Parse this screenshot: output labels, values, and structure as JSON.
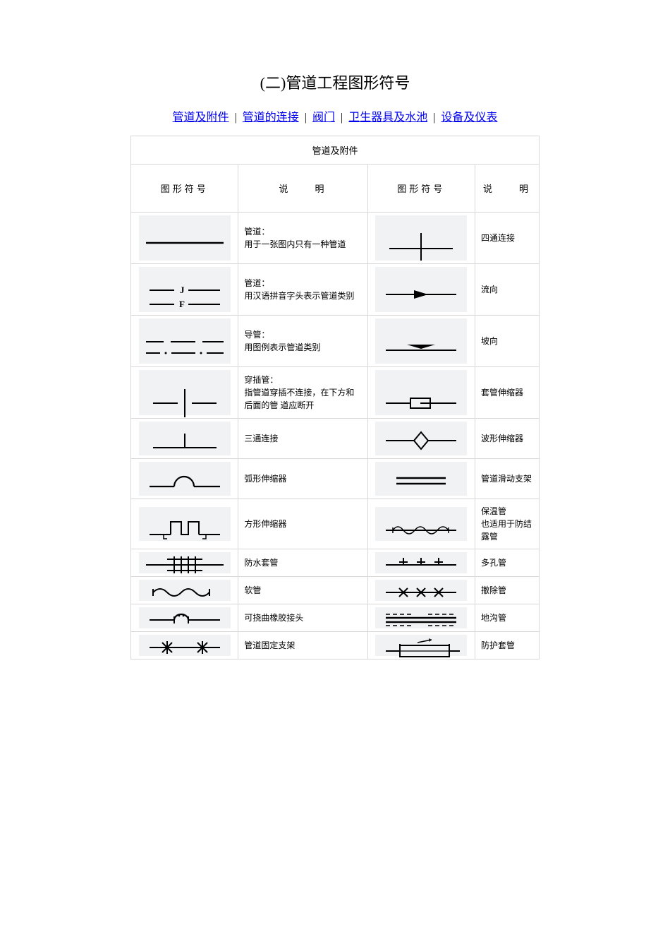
{
  "title": "(二)管道工程图形符号",
  "nav": {
    "items": [
      "管道及附件",
      "管道的连接",
      "阀门",
      "卫生器具及水池",
      "设备及仪表"
    ],
    "sep": " | "
  },
  "table": {
    "caption": "管道及附件",
    "headers": {
      "sym1": "图形符号",
      "desc1": "说　　明",
      "sym2": "图形符号",
      "desc2": "说　　明"
    },
    "rows": [
      {
        "svg1": "line",
        "desc1": "管道：\n用于一张图内只有一种管道",
        "svg2": "cross",
        "desc2": "四通连接"
      },
      {
        "svg1": "jf",
        "desc1": "管道：\n用汉语拼音字头表示管道类别",
        "svg2": "arrow",
        "desc2": "流向"
      },
      {
        "svg1": "dashdot",
        "desc1": "导管：\n用图例表示管道类别",
        "svg2": "slope",
        "desc2": "坡向"
      },
      {
        "svg1": "gap",
        "desc1": "穿插管：\n指管道穿插不连接，在下方和后面的管 道应断开",
        "svg2": "sleeve-exp",
        "desc2": "套管伸缩器"
      },
      {
        "svg1": "tee",
        "desc1": "三通连接",
        "svg2": "diamond",
        "desc2": "波形伸缩器"
      },
      {
        "svg1": "omega",
        "desc1": "弧形伸缩器",
        "svg2": "doubleline",
        "desc2": "管道滑动支架"
      },
      {
        "svg1": "square-exp",
        "desc1": "方形伸缩器",
        "svg2": "insulated",
        "desc2": "保温管\n也适用于防结露管"
      },
      {
        "svg1": "waterproof",
        "desc1": "防水套管",
        "svg2": "multi",
        "desc2": "多孔管"
      },
      {
        "svg1": "hose",
        "desc1": "软管",
        "svg2": "remove",
        "desc2": "撤除管"
      },
      {
        "svg1": "rubber",
        "desc1": "可挠曲橡胶接头",
        "svg2": "trench",
        "desc2": "地沟管"
      },
      {
        "svg1": "anchor",
        "desc1": "管道固定支架",
        "svg2": "protect",
        "desc2": "防护套管"
      }
    ]
  },
  "style": {
    "stroke": "#000000",
    "bg": "#f1f2f4",
    "link": "#0000ee"
  }
}
